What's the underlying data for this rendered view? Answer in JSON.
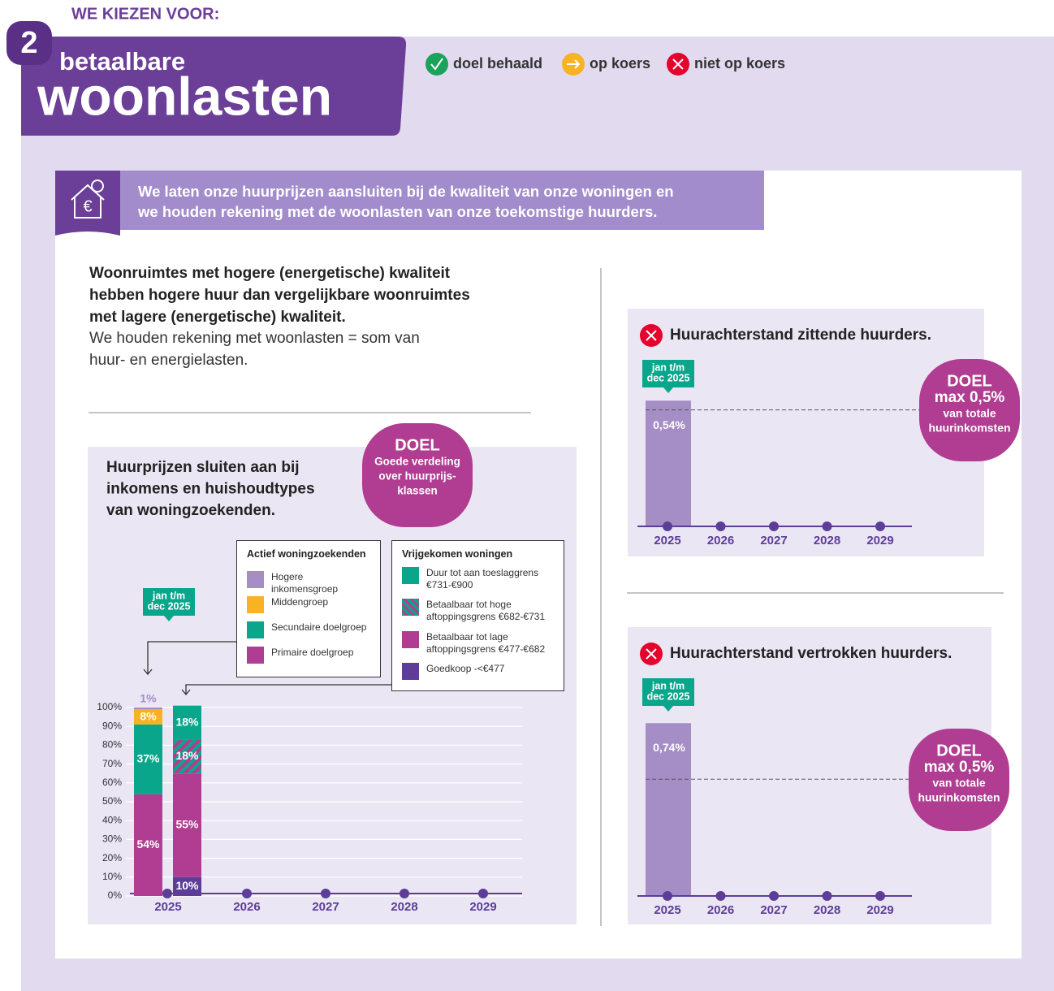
{
  "header": {
    "kicker": "WE KIEZEN VOOR:",
    "number": "2",
    "subtitle": "betaalbare",
    "title": "woonlasten"
  },
  "status_legend": [
    "doel behaald",
    "op koers",
    "niet op koers"
  ],
  "banner": [
    "We laten onze huurprijzen aansluiten bij de kwaliteit van onze woningen en",
    "we houden rekening met de woonlasten van onze toekomstige huurders."
  ],
  "intro": {
    "bold": [
      "Woonruimtes met hogere (energetische) kwaliteit",
      "hebben hogere huur dan vergelijkbare woonruimtes",
      "met lagere (energetische) kwaliteit."
    ],
    "text": [
      "We houden rekening met woonlasten = som van",
      "huur- en energielasten."
    ]
  },
  "chart_data": [
    {
      "type": "stacked_bar",
      "title": [
        "Huurprijzen sluiten aan bij",
        "inkomens en huishoudtypes",
        "van woningzoekenden."
      ],
      "goal": {
        "heading": "DOEL",
        "lines": [
          "Goede verdeling",
          "over huurprijs-",
          "klassen"
        ]
      },
      "period": [
        "jan t/m",
        "dec 2025"
      ],
      "categories": [
        "2025",
        "2026",
        "2027",
        "2028",
        "2029"
      ],
      "ylim": [
        0,
        100
      ],
      "yticks": [
        {
          "value": 0,
          "label": "0%"
        },
        {
          "value": 10,
          "label": "10%"
        },
        {
          "value": 20,
          "label": "20%"
        },
        {
          "value": 30,
          "label": "30%"
        },
        {
          "value": 40,
          "label": "40%"
        },
        {
          "value": 50,
          "label": "50%"
        },
        {
          "value": 60,
          "label": "60%"
        },
        {
          "value": 70,
          "label": "70%"
        },
        {
          "value": 80,
          "label": "80%"
        },
        {
          "value": 90,
          "label": "90%"
        },
        {
          "value": 100,
          "label": "100%"
        }
      ],
      "grid": true,
      "groups": [
        {
          "name": "Actief woningzoekenden",
          "series": [
            {
              "name": "Primaire doelgroep",
              "color": "#b03d91",
              "values": [
                54,
                null,
                null,
                null,
                null
              ],
              "value_labels": [
                "54%",
                null,
                null,
                null,
                null
              ]
            },
            {
              "name": "Secundaire doelgroep",
              "color": "#0aa68b",
              "values": [
                37,
                null,
                null,
                null,
                null
              ],
              "value_labels": [
                "37%",
                null,
                null,
                null,
                null
              ]
            },
            {
              "name": "Middengroep",
              "color": "#f8b323",
              "values": [
                8,
                null,
                null,
                null,
                null
              ],
              "value_labels": [
                "8%",
                null,
                null,
                null,
                null
              ]
            },
            {
              "name": "Hogere inkomensgroep",
              "color": "#a58dc6",
              "values": [
                1,
                null,
                null,
                null,
                null
              ],
              "value_labels": [
                "1%",
                null,
                null,
                null,
                null
              ]
            }
          ]
        },
        {
          "name": "Vrijgekomen woningen",
          "series": [
            {
              "name": "Goedkoop -<€477",
              "color": "#5c3d98",
              "values": [
                10,
                null,
                null,
                null,
                null
              ],
              "value_labels": [
                "10%",
                null,
                null,
                null,
                null
              ]
            },
            {
              "name": "Betaalbaar tot lage aftoppingsgrens €477-€682",
              "color": "#b03d91",
              "values": [
                55,
                null,
                null,
                null,
                null
              ],
              "value_labels": [
                "55%",
                null,
                null,
                null,
                null
              ]
            },
            {
              "name": "Betaalbaar tot hoge aftoppingsgrens €682-€731",
              "color": "#0aa68b",
              "hatch_color": "#b03d91",
              "values": [
                18,
                null,
                null,
                null,
                null
              ],
              "value_labels": [
                "18%",
                null,
                null,
                null,
                null
              ]
            },
            {
              "name": "Duur tot aan toeslaggrens €731-€900",
              "color": "#0aa68b",
              "values": [
                18,
                null,
                null,
                null,
                null
              ],
              "value_labels": [
                "18%",
                null,
                null,
                null,
                null
              ]
            }
          ]
        }
      ]
    },
    {
      "type": "bar",
      "title": "Huurachterstand zittende huurders.",
      "period": [
        "jan t/m",
        "dec 2025"
      ],
      "categories": [
        "2025",
        "2026",
        "2027",
        "2028",
        "2029"
      ],
      "values": [
        0.54,
        null,
        null,
        null,
        null
      ],
      "value_labels": [
        "0,54%",
        null,
        null,
        null,
        null
      ],
      "color": "#a58dc6",
      "ylim": [
        0,
        0.6
      ],
      "goal": {
        "heading": "DOEL",
        "value": 0.5,
        "label": "max 0,5%",
        "lines": [
          "van totale",
          "huurinkomsten"
        ]
      }
    },
    {
      "type": "bar",
      "title": "Huurachterstand vertrokken huurders.",
      "period": [
        "jan t/m",
        "dec 2025"
      ],
      "categories": [
        "2025",
        "2026",
        "2027",
        "2028",
        "2029"
      ],
      "values": [
        0.74,
        null,
        null,
        null,
        null
      ],
      "value_labels": [
        "0,74%",
        null,
        null,
        null,
        null
      ],
      "color": "#a58dc6",
      "ylim": [
        0,
        0.8
      ],
      "goal": {
        "heading": "DOEL",
        "value": 0.5,
        "label": "max 0,5%",
        "lines": [
          "van totale",
          "huurinkomsten"
        ]
      }
    }
  ]
}
